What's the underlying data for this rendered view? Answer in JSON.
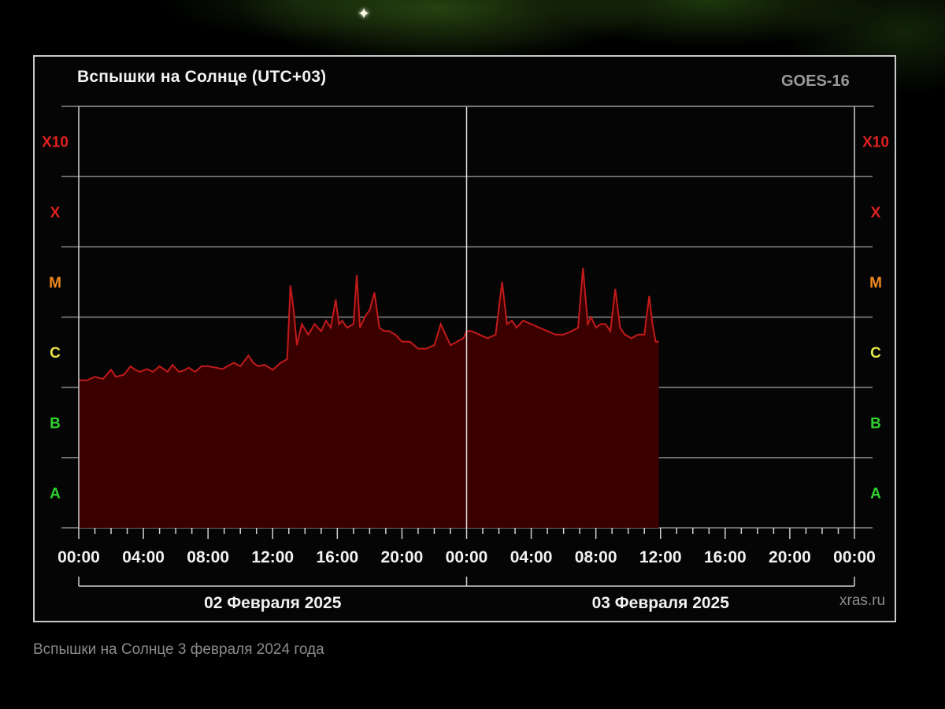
{
  "title": "Вспышки на Солнце (UTC+03)",
  "satellite": "GOES-16",
  "credit": "xras.ru",
  "caption": "Вспышки на Солнце 3 февраля 2024 года",
  "colors": {
    "fill": "#3a0000",
    "line": "#c21a1a",
    "grid": "#8a8a8a",
    "A": "#2fd12f",
    "B": "#2fd12f",
    "C": "#e6e64a",
    "M": "#f08a1e",
    "X": "#e02020",
    "X10": "#e02020"
  },
  "chart_data": {
    "type": "area",
    "title": "Вспышки на Солнце (UTC+03)",
    "xlabel": "",
    "ylabel": "",
    "y_scale": "flare class (log)",
    "ylim": [
      0,
      6
    ],
    "y_classes": [
      "A",
      "B",
      "C",
      "M",
      "X",
      "X10"
    ],
    "xlim": [
      0,
      48
    ],
    "x_tick_labels": [
      "00:00",
      "04:00",
      "08:00",
      "12:00",
      "16:00",
      "20:00",
      "00:00",
      "04:00",
      "08:00",
      "12:00",
      "16:00",
      "20:00",
      "00:00"
    ],
    "x_tick_hours": [
      0,
      4,
      8,
      12,
      16,
      20,
      24,
      28,
      32,
      36,
      40,
      44,
      48
    ],
    "day_labels": [
      "02 Февраля 2025",
      "03 Февраля 2025"
    ],
    "series": [
      {
        "x": [
          0,
          0.5,
          1.0,
          1.5,
          2.0,
          2.3,
          2.8,
          3.2,
          3.5,
          3.8,
          4.2,
          4.6,
          5.0,
          5.5,
          5.8,
          6.2,
          6.5,
          6.8,
          7.2,
          7.6,
          8.0,
          8.5,
          8.9,
          9.2,
          9.6,
          10.0,
          10.5,
          10.8,
          11.1,
          11.5,
          12.0,
          12.5,
          12.9,
          13.1,
          13.3,
          13.5,
          13.8,
          14.2,
          14.6,
          15.0,
          15.3,
          15.6,
          15.9,
          16.1,
          16.3,
          16.6,
          17.0,
          17.2,
          17.4,
          17.7,
          18.0,
          18.3,
          18.6,
          18.9,
          19.2,
          19.6,
          20.0,
          20.5,
          21.0,
          21.5,
          22.0,
          22.4,
          22.7,
          23.0,
          23.4,
          23.8,
          24.0,
          24.3,
          24.8,
          25.3,
          25.8,
          26.2,
          26.5,
          26.8,
          27.1,
          27.5,
          28.0,
          28.5,
          29.0,
          29.5,
          30.0,
          30.5,
          30.9,
          31.2,
          31.5,
          31.7,
          32.0,
          32.3,
          32.6,
          32.9,
          33.2,
          33.5,
          33.8,
          34.2,
          34.6,
          35.0,
          35.3,
          35.5,
          35.7,
          35.9
        ],
        "y": [
          2.1,
          2.1,
          2.15,
          2.12,
          2.25,
          2.15,
          2.18,
          2.3,
          2.25,
          2.22,
          2.26,
          2.22,
          2.3,
          2.22,
          2.32,
          2.22,
          2.24,
          2.28,
          2.22,
          2.3,
          2.3,
          2.28,
          2.26,
          2.3,
          2.35,
          2.3,
          2.45,
          2.35,
          2.3,
          2.32,
          2.25,
          2.35,
          2.4,
          3.45,
          3.1,
          2.6,
          2.9,
          2.75,
          2.9,
          2.8,
          2.95,
          2.85,
          3.25,
          2.9,
          2.95,
          2.85,
          2.9,
          3.6,
          2.85,
          3.0,
          3.1,
          3.35,
          2.85,
          2.8,
          2.8,
          2.75,
          2.65,
          2.65,
          2.55,
          2.55,
          2.6,
          2.9,
          2.75,
          2.6,
          2.65,
          2.7,
          2.8,
          2.8,
          2.75,
          2.7,
          2.75,
          3.5,
          2.9,
          2.95,
          2.85,
          2.95,
          2.9,
          2.85,
          2.8,
          2.75,
          2.75,
          2.8,
          2.85,
          3.7,
          2.9,
          3.0,
          2.85,
          2.9,
          2.9,
          2.8,
          3.4,
          2.85,
          2.75,
          2.7,
          2.75,
          2.75,
          3.3,
          2.9,
          2.65,
          2.65
        ]
      }
    ]
  }
}
